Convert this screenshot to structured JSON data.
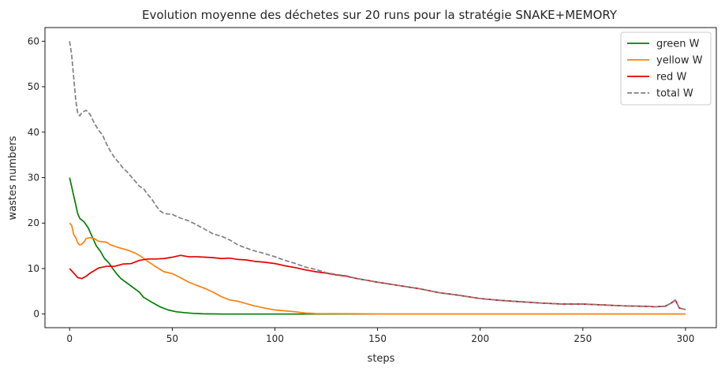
{
  "chart_data": {
    "type": "line",
    "title": "Evolution moyenne des déchetes sur 20 runs pour la stratégie SNAKE+MEMORY",
    "xlabel": "steps",
    "ylabel": "wastes numbers",
    "xlim": [
      -12,
      315
    ],
    "ylim": [
      -3,
      63
    ],
    "xticks": [
      0,
      50,
      100,
      150,
      200,
      250,
      300
    ],
    "yticks": [
      0,
      10,
      20,
      30,
      40,
      50,
      60
    ],
    "grid": false,
    "legend_position": "top-right",
    "series": [
      {
        "name": "green W",
        "color": "#008000",
        "dash": "solid",
        "points": [
          [
            0,
            30
          ],
          [
            2,
            26
          ],
          [
            4,
            22
          ],
          [
            5,
            21
          ],
          [
            7,
            20.3
          ],
          [
            9,
            19
          ],
          [
            11,
            17
          ],
          [
            13,
            15
          ],
          [
            15,
            13.8
          ],
          [
            17,
            12.2
          ],
          [
            19,
            11.3
          ],
          [
            21,
            10
          ],
          [
            23,
            8.8
          ],
          [
            25,
            7.8
          ],
          [
            28,
            6.8
          ],
          [
            31,
            5.8
          ],
          [
            34,
            4.8
          ],
          [
            36,
            3.7
          ],
          [
            40,
            2.6
          ],
          [
            44,
            1.6
          ],
          [
            48,
            0.9
          ],
          [
            52,
            0.5
          ],
          [
            56,
            0.3
          ],
          [
            60,
            0.15
          ],
          [
            65,
            0.05
          ],
          [
            75,
            0
          ],
          [
            150,
            0
          ],
          [
            300,
            0
          ]
        ]
      },
      {
        "name": "yellow W",
        "color": "#ff7f0e",
        "dash": "solid",
        "points": [
          [
            0,
            20
          ],
          [
            1,
            19.5
          ],
          [
            2,
            17.5
          ],
          [
            3,
            16.8
          ],
          [
            4,
            15.6
          ],
          [
            5,
            15.2
          ],
          [
            6,
            15.4
          ],
          [
            7,
            15.8
          ],
          [
            8,
            16.6
          ],
          [
            10,
            16.8
          ],
          [
            12,
            16.6
          ],
          [
            14,
            16
          ],
          [
            18,
            15.8
          ],
          [
            20,
            15.2
          ],
          [
            24,
            14.6
          ],
          [
            28,
            14.1
          ],
          [
            32,
            13.4
          ],
          [
            35,
            12.6
          ],
          [
            38,
            11.6
          ],
          [
            42,
            10.4
          ],
          [
            46,
            9.3
          ],
          [
            50,
            8.9
          ],
          [
            54,
            8
          ],
          [
            58,
            7
          ],
          [
            62,
            6.3
          ],
          [
            66,
            5.6
          ],
          [
            70,
            4.8
          ],
          [
            74,
            3.8
          ],
          [
            78,
            3.1
          ],
          [
            82,
            2.8
          ],
          [
            86,
            2.3
          ],
          [
            90,
            1.8
          ],
          [
            95,
            1.3
          ],
          [
            100,
            0.9
          ],
          [
            105,
            0.7
          ],
          [
            110,
            0.5
          ],
          [
            115,
            0.2
          ],
          [
            120,
            0.1
          ],
          [
            140,
            0.05
          ],
          [
            150,
            0
          ],
          [
            300,
            0
          ]
        ]
      },
      {
        "name": "red W",
        "color": "#e60000",
        "dash": "solid",
        "points": [
          [
            0,
            10
          ],
          [
            2,
            9
          ],
          [
            4,
            8
          ],
          [
            6,
            7.8
          ],
          [
            8,
            8.3
          ],
          [
            10,
            9
          ],
          [
            14,
            10.1
          ],
          [
            18,
            10.5
          ],
          [
            22,
            10.5
          ],
          [
            26,
            11
          ],
          [
            30,
            11.1
          ],
          [
            34,
            11.8
          ],
          [
            38,
            12.1
          ],
          [
            42,
            12.1
          ],
          [
            46,
            12.2
          ],
          [
            50,
            12.5
          ],
          [
            54,
            12.9
          ],
          [
            58,
            12.6
          ],
          [
            62,
            12.6
          ],
          [
            66,
            12.5
          ],
          [
            70,
            12.4
          ],
          [
            74,
            12.2
          ],
          [
            78,
            12.3
          ],
          [
            82,
            12
          ],
          [
            86,
            11.9
          ],
          [
            90,
            11.6
          ],
          [
            95,
            11.4
          ],
          [
            100,
            11.1
          ],
          [
            105,
            10.6
          ],
          [
            110,
            10.2
          ],
          [
            115,
            9.7
          ],
          [
            120,
            9.3
          ],
          [
            125,
            9
          ],
          [
            130,
            8.6
          ],
          [
            135,
            8.3
          ],
          [
            140,
            7.8
          ],
          [
            145,
            7.4
          ],
          [
            150,
            7
          ],
          [
            160,
            6.3
          ],
          [
            170,
            5.6
          ],
          [
            180,
            4.7
          ],
          [
            190,
            4.1
          ],
          [
            200,
            3.4
          ],
          [
            210,
            3
          ],
          [
            220,
            2.7
          ],
          [
            230,
            2.4
          ],
          [
            240,
            2.2
          ],
          [
            250,
            2.2
          ],
          [
            260,
            2
          ],
          [
            270,
            1.8
          ],
          [
            280,
            1.7
          ],
          [
            285,
            1.6
          ],
          [
            290,
            1.7
          ],
          [
            293,
            2.4
          ],
          [
            295,
            3.1
          ],
          [
            296,
            2.2
          ],
          [
            297,
            1.3
          ],
          [
            300,
            1
          ]
        ]
      },
      {
        "name": "total W",
        "color": "#808080",
        "dash": "dashed",
        "points": [
          [
            0,
            60
          ],
          [
            1,
            57
          ],
          [
            2,
            52
          ],
          [
            3,
            47
          ],
          [
            4,
            44
          ],
          [
            5,
            43.6
          ],
          [
            6,
            44.3
          ],
          [
            8,
            44.8
          ],
          [
            10,
            43.9
          ],
          [
            12,
            42
          ],
          [
            14,
            40.5
          ],
          [
            16,
            39.4
          ],
          [
            18,
            37.4
          ],
          [
            20,
            35.7
          ],
          [
            22,
            34.3
          ],
          [
            24,
            33.3
          ],
          [
            26,
            32.1
          ],
          [
            28,
            31.3
          ],
          [
            30,
            30.2
          ],
          [
            32,
            29.2
          ],
          [
            34,
            28.1
          ],
          [
            36,
            27.6
          ],
          [
            38,
            26.3
          ],
          [
            40,
            25.3
          ],
          [
            42,
            23.9
          ],
          [
            44,
            22.7
          ],
          [
            46,
            22.1
          ],
          [
            50,
            21.9
          ],
          [
            54,
            21.1
          ],
          [
            58,
            20.5
          ],
          [
            62,
            19.6
          ],
          [
            66,
            18.6
          ],
          [
            70,
            17.6
          ],
          [
            74,
            17.1
          ],
          [
            78,
            16.3
          ],
          [
            82,
            15.2
          ],
          [
            86,
            14.5
          ],
          [
            90,
            13.9
          ],
          [
            95,
            13.3
          ],
          [
            100,
            12.6
          ],
          [
            105,
            11.8
          ],
          [
            110,
            11.1
          ],
          [
            115,
            10.3
          ],
          [
            120,
            9.8
          ],
          [
            125,
            9.1
          ],
          [
            130,
            8.7
          ],
          [
            135,
            8.4
          ],
          [
            140,
            7.8
          ],
          [
            145,
            7.4
          ],
          [
            150,
            7
          ],
          [
            160,
            6.3
          ],
          [
            170,
            5.6
          ],
          [
            180,
            4.7
          ],
          [
            190,
            4.1
          ],
          [
            200,
            3.4
          ],
          [
            210,
            3
          ],
          [
            220,
            2.7
          ],
          [
            230,
            2.4
          ],
          [
            240,
            2.2
          ],
          [
            250,
            2.2
          ],
          [
            260,
            2
          ],
          [
            270,
            1.8
          ],
          [
            280,
            1.7
          ],
          [
            285,
            1.6
          ],
          [
            290,
            1.7
          ],
          [
            293,
            2.4
          ],
          [
            295,
            3.1
          ],
          [
            296,
            2.2
          ],
          [
            297,
            1.3
          ],
          [
            300,
            1
          ]
        ]
      }
    ]
  }
}
